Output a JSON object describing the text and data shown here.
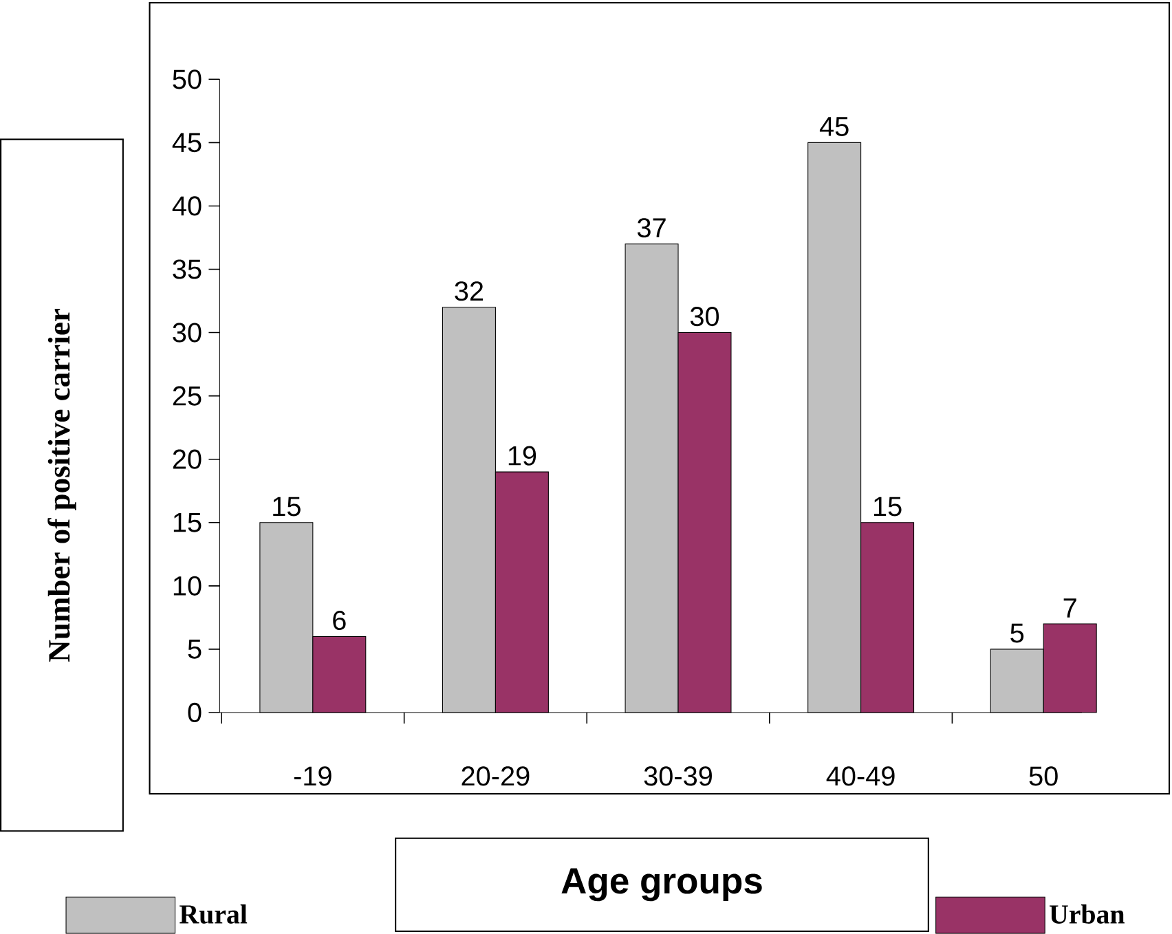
{
  "chart_data": {
    "type": "bar",
    "xlabel": "Age groups",
    "ylabel": "Number of positive carrier",
    "categories": [
      "-19",
      "20-29",
      "30-39",
      "40-49",
      "50"
    ],
    "series": [
      {
        "name": "Rural",
        "color": "#c0c0c0",
        "values": [
          15,
          32,
          37,
          45,
          5
        ]
      },
      {
        "name": "Urban",
        "color": "#993366",
        "values": [
          6,
          19,
          30,
          15,
          7
        ]
      }
    ],
    "ylim": [
      0,
      50
    ],
    "yticks": [
      0,
      5,
      10,
      15,
      20,
      25,
      30,
      35,
      40,
      45,
      50
    ],
    "data_labels": true,
    "legend": "bottom",
    "grid": false
  }
}
